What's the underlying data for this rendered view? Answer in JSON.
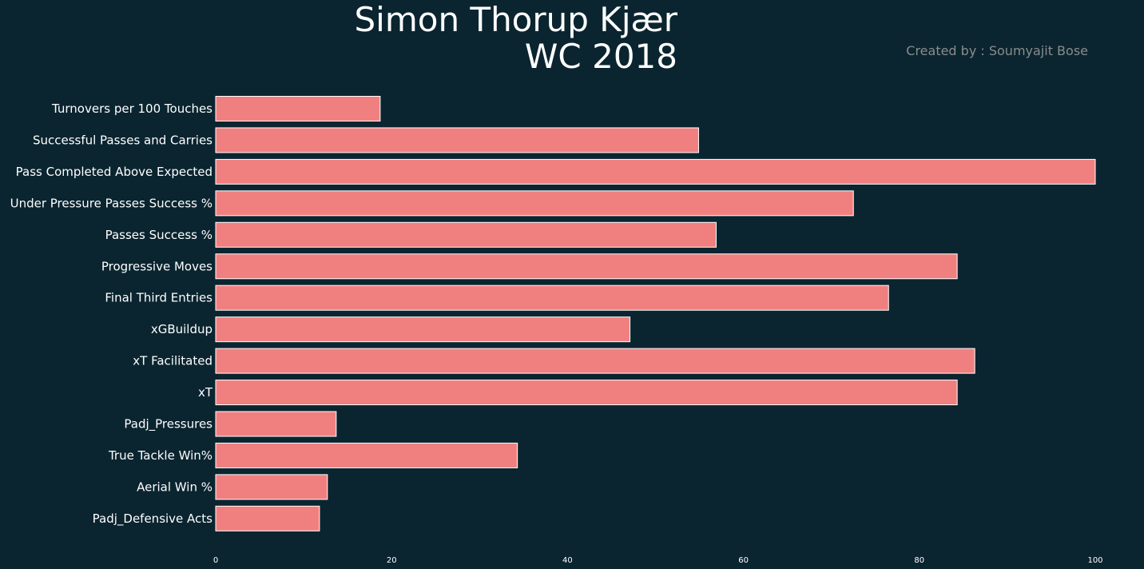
{
  "chart_data": {
    "type": "bar",
    "orientation": "horizontal",
    "title_line1": "Simon Thorup Kjær",
    "title_line2": "WC 2018",
    "credit": "Created by : Soumyajit Bose",
    "categories": [
      "Turnovers per 100 Touches",
      "Successful Passes and Carries",
      "Pass Completed Above Expected",
      "Under Pressure Passes Success %",
      "Passes Success %",
      "Progressive Moves",
      "Final Third Entries",
      "xGBuildup",
      "xT Facilitated",
      "xT",
      "Padj_Pressures",
      "True Tackle Win%",
      "Aerial Win %",
      "Padj_Defensive Acts"
    ],
    "values": [
      18.7,
      54.9,
      100,
      72.5,
      56.9,
      84.3,
      76.5,
      47.1,
      86.3,
      84.3,
      13.7,
      34.3,
      12.7,
      11.8
    ],
    "xlim": [
      0,
      100
    ],
    "xticks": [
      "0",
      "20",
      "40",
      "60",
      "80",
      "100"
    ],
    "grid": false,
    "colors": {
      "background": "#0a2530",
      "bar": "#f08080",
      "bar_edge": "#ffffff",
      "text": "#ffffff",
      "credit": "#8c8c8c"
    }
  }
}
